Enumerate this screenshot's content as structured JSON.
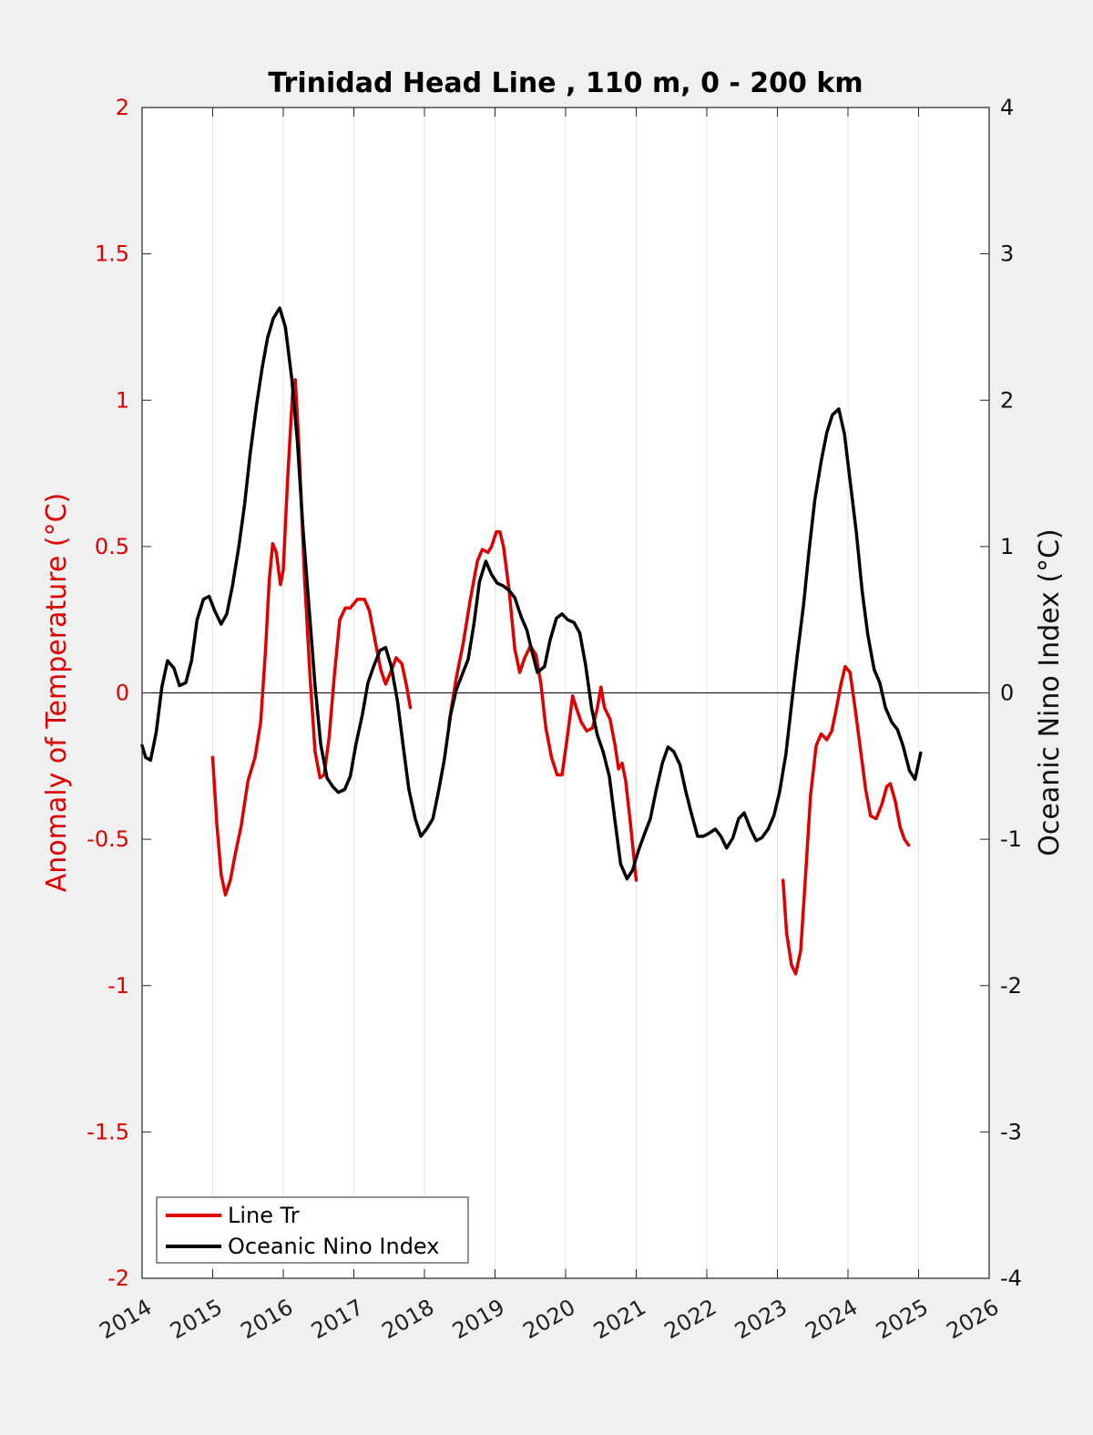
{
  "chart_data": {
    "type": "line",
    "title": "Trinidad Head Line , 110 m, 0 - 200 km",
    "ylabel": "Anomaly of Temperature (°C)",
    "ylabel_right": "Oceanic Nino Index (°C)",
    "xlim": [
      2014,
      2026
    ],
    "ylim": [
      -2,
      2
    ],
    "ylim_right": [
      -4,
      4
    ],
    "x_ticks": [
      "2014",
      "2015",
      "2016",
      "2017",
      "2018",
      "2019",
      "2020",
      "2021",
      "2022",
      "2023",
      "2024",
      "2025",
      "2026"
    ],
    "y_ticks_left": [
      "-2",
      "-1.5",
      "-1",
      "-0.5",
      "0",
      "0.5",
      "1",
      "1.5",
      "2"
    ],
    "y_ticks_right": [
      "-4",
      "-3",
      "-2",
      "-1",
      "0",
      "1",
      "2",
      "3",
      "4"
    ],
    "grid": "vertical",
    "zero_line": true,
    "legend_position": "bottom-left",
    "series": [
      {
        "name": "Line Tr",
        "color": "#e00000",
        "axis": "left",
        "segments": [
          [
            [
              2015.0,
              -0.22
            ],
            [
              2015.06,
              -0.45
            ],
            [
              2015.12,
              -0.62
            ],
            [
              2015.18,
              -0.69
            ],
            [
              2015.25,
              -0.64
            ],
            [
              2015.32,
              -0.55
            ],
            [
              2015.4,
              -0.46
            ],
            [
              2015.5,
              -0.3
            ],
            [
              2015.6,
              -0.22
            ],
            [
              2015.68,
              -0.1
            ],
            [
              2015.75,
              0.15
            ],
            [
              2015.8,
              0.38
            ],
            [
              2015.85,
              0.51
            ],
            [
              2015.9,
              0.48
            ],
            [
              2015.96,
              0.37
            ],
            [
              2016.0,
              0.42
            ],
            [
              2016.06,
              0.72
            ],
            [
              2016.13,
              1.02
            ],
            [
              2016.17,
              1.07
            ],
            [
              2016.22,
              0.85
            ],
            [
              2016.3,
              0.4
            ],
            [
              2016.38,
              0.05
            ],
            [
              2016.45,
              -0.2
            ],
            [
              2016.52,
              -0.29
            ],
            [
              2016.58,
              -0.28
            ],
            [
              2016.65,
              -0.15
            ],
            [
              2016.72,
              0.05
            ],
            [
              2016.8,
              0.25
            ],
            [
              2016.88,
              0.29
            ],
            [
              2016.95,
              0.29
            ],
            [
              2017.05,
              0.32
            ],
            [
              2017.15,
              0.32
            ],
            [
              2017.22,
              0.28
            ],
            [
              2017.3,
              0.18
            ],
            [
              2017.38,
              0.08
            ],
            [
              2017.45,
              0.03
            ],
            [
              2017.52,
              0.07
            ],
            [
              2017.6,
              0.12
            ],
            [
              2017.68,
              0.1
            ],
            [
              2017.75,
              0.02
            ],
            [
              2017.8,
              -0.05
            ]
          ],
          [
            [
              2018.35,
              -0.1
            ],
            [
              2018.45,
              0.05
            ],
            [
              2018.55,
              0.17
            ],
            [
              2018.65,
              0.32
            ],
            [
              2018.75,
              0.45
            ],
            [
              2018.82,
              0.49
            ],
            [
              2018.9,
              0.48
            ],
            [
              2018.95,
              0.5
            ],
            [
              2019.02,
              0.55
            ],
            [
              2019.07,
              0.55
            ],
            [
              2019.12,
              0.5
            ],
            [
              2019.2,
              0.35
            ],
            [
              2019.28,
              0.15
            ],
            [
              2019.35,
              0.07
            ],
            [
              2019.42,
              0.12
            ],
            [
              2019.5,
              0.16
            ],
            [
              2019.58,
              0.13
            ],
            [
              2019.65,
              0.03
            ],
            [
              2019.72,
              -0.12
            ],
            [
              2019.8,
              -0.22
            ],
            [
              2019.88,
              -0.28
            ],
            [
              2019.95,
              -0.28
            ],
            [
              2020.03,
              -0.14
            ],
            [
              2020.1,
              -0.01
            ],
            [
              2020.15,
              -0.05
            ],
            [
              2020.22,
              -0.1
            ],
            [
              2020.3,
              -0.13
            ],
            [
              2020.38,
              -0.12
            ],
            [
              2020.45,
              -0.05
            ],
            [
              2020.5,
              0.02
            ],
            [
              2020.55,
              -0.05
            ],
            [
              2020.63,
              -0.09
            ],
            [
              2020.7,
              -0.18
            ],
            [
              2020.75,
              -0.26
            ],
            [
              2020.8,
              -0.24
            ],
            [
              2020.85,
              -0.3
            ],
            [
              2020.92,
              -0.45
            ],
            [
              2021.0,
              -0.64
            ]
          ],
          [
            [
              2023.08,
              -0.64
            ],
            [
              2023.13,
              -0.82
            ],
            [
              2023.2,
              -0.93
            ],
            [
              2023.26,
              -0.96
            ],
            [
              2023.33,
              -0.88
            ],
            [
              2023.4,
              -0.62
            ],
            [
              2023.47,
              -0.35
            ],
            [
              2023.55,
              -0.18
            ],
            [
              2023.62,
              -0.14
            ],
            [
              2023.7,
              -0.16
            ],
            [
              2023.77,
              -0.13
            ],
            [
              2023.83,
              -0.06
            ],
            [
              2023.9,
              0.03
            ],
            [
              2023.96,
              0.09
            ],
            [
              2024.03,
              0.07
            ],
            [
              2024.1,
              -0.05
            ],
            [
              2024.18,
              -0.2
            ],
            [
              2024.25,
              -0.33
            ],
            [
              2024.32,
              -0.42
            ],
            [
              2024.4,
              -0.43
            ],
            [
              2024.48,
              -0.38
            ],
            [
              2024.55,
              -0.32
            ],
            [
              2024.6,
              -0.31
            ],
            [
              2024.67,
              -0.37
            ],
            [
              2024.74,
              -0.46
            ],
            [
              2024.8,
              -0.5
            ],
            [
              2024.86,
              -0.52
            ]
          ]
        ]
      },
      {
        "name": "Oceanic Nino Index",
        "color": "#000000",
        "axis": "right",
        "segments": [
          [
            [
              2014.0,
              -0.36
            ],
            [
              2014.05,
              -0.44
            ],
            [
              2014.12,
              -0.46
            ],
            [
              2014.2,
              -0.27
            ],
            [
              2014.28,
              0.04
            ],
            [
              2014.36,
              0.22
            ],
            [
              2014.45,
              0.17
            ],
            [
              2014.53,
              0.05
            ],
            [
              2014.62,
              0.07
            ],
            [
              2014.7,
              0.22
            ],
            [
              2014.78,
              0.5
            ],
            [
              2014.87,
              0.64
            ],
            [
              2014.95,
              0.66
            ],
            [
              2015.03,
              0.56
            ],
            [
              2015.12,
              0.47
            ],
            [
              2015.2,
              0.54
            ],
            [
              2015.28,
              0.73
            ],
            [
              2015.37,
              1.0
            ],
            [
              2015.45,
              1.28
            ],
            [
              2015.53,
              1.63
            ],
            [
              2015.62,
              1.96
            ],
            [
              2015.7,
              2.22
            ],
            [
              2015.78,
              2.43
            ],
            [
              2015.86,
              2.56
            ],
            [
              2015.95,
              2.63
            ],
            [
              2016.03,
              2.5
            ],
            [
              2016.12,
              2.15
            ],
            [
              2016.2,
              1.72
            ],
            [
              2016.28,
              1.12
            ],
            [
              2016.37,
              0.55
            ],
            [
              2016.45,
              0.05
            ],
            [
              2016.53,
              -0.35
            ],
            [
              2016.62,
              -0.58
            ],
            [
              2016.7,
              -0.64
            ],
            [
              2016.78,
              -0.68
            ],
            [
              2016.87,
              -0.66
            ],
            [
              2016.95,
              -0.57
            ],
            [
              2017.03,
              -0.35
            ],
            [
              2017.12,
              -0.15
            ],
            [
              2017.2,
              0.07
            ],
            [
              2017.28,
              0.18
            ],
            [
              2017.37,
              0.29
            ],
            [
              2017.45,
              0.31
            ],
            [
              2017.53,
              0.18
            ],
            [
              2017.62,
              -0.06
            ],
            [
              2017.7,
              -0.37
            ],
            [
              2017.78,
              -0.66
            ],
            [
              2017.87,
              -0.86
            ],
            [
              2017.95,
              -0.98
            ],
            [
              2018.03,
              -0.93
            ],
            [
              2018.12,
              -0.86
            ],
            [
              2018.2,
              -0.67
            ],
            [
              2018.28,
              -0.46
            ],
            [
              2018.37,
              -0.15
            ],
            [
              2018.45,
              0.02
            ],
            [
              2018.53,
              0.12
            ],
            [
              2018.62,
              0.23
            ],
            [
              2018.7,
              0.47
            ],
            [
              2018.78,
              0.76
            ],
            [
              2018.87,
              0.9
            ],
            [
              2018.95,
              0.81
            ],
            [
              2019.03,
              0.75
            ],
            [
              2019.12,
              0.73
            ],
            [
              2019.2,
              0.7
            ],
            [
              2019.28,
              0.65
            ],
            [
              2019.37,
              0.52
            ],
            [
              2019.45,
              0.43
            ],
            [
              2019.53,
              0.27
            ],
            [
              2019.6,
              0.14
            ],
            [
              2019.7,
              0.18
            ],
            [
              2019.78,
              0.36
            ],
            [
              2019.87,
              0.51
            ],
            [
              2019.95,
              0.54
            ],
            [
              2020.03,
              0.5
            ],
            [
              2020.12,
              0.48
            ],
            [
              2020.2,
              0.41
            ],
            [
              2020.28,
              0.2
            ],
            [
              2020.37,
              -0.11
            ],
            [
              2020.45,
              -0.29
            ],
            [
              2020.53,
              -0.4
            ],
            [
              2020.62,
              -0.57
            ],
            [
              2020.7,
              -0.88
            ],
            [
              2020.78,
              -1.17
            ],
            [
              2020.87,
              -1.27
            ],
            [
              2020.95,
              -1.21
            ],
            [
              2021.03,
              -1.08
            ],
            [
              2021.12,
              -0.96
            ],
            [
              2021.2,
              -0.86
            ],
            [
              2021.28,
              -0.67
            ],
            [
              2021.37,
              -0.48
            ],
            [
              2021.45,
              -0.37
            ],
            [
              2021.53,
              -0.4
            ],
            [
              2021.62,
              -0.49
            ],
            [
              2021.7,
              -0.67
            ],
            [
              2021.78,
              -0.82
            ],
            [
              2021.87,
              -0.98
            ],
            [
              2021.95,
              -0.98
            ],
            [
              2022.03,
              -0.96
            ],
            [
              2022.12,
              -0.93
            ],
            [
              2022.2,
              -0.98
            ],
            [
              2022.28,
              -1.06
            ],
            [
              2022.37,
              -0.99
            ],
            [
              2022.45,
              -0.86
            ],
            [
              2022.53,
              -0.82
            ],
            [
              2022.62,
              -0.93
            ],
            [
              2022.7,
              -1.01
            ],
            [
              2022.78,
              -0.99
            ],
            [
              2022.87,
              -0.93
            ],
            [
              2022.95,
              -0.84
            ],
            [
              2023.03,
              -0.68
            ],
            [
              2023.12,
              -0.42
            ],
            [
              2023.2,
              -0.08
            ],
            [
              2023.28,
              0.25
            ],
            [
              2023.37,
              0.6
            ],
            [
              2023.45,
              0.98
            ],
            [
              2023.53,
              1.32
            ],
            [
              2023.62,
              1.58
            ],
            [
              2023.7,
              1.78
            ],
            [
              2023.78,
              1.9
            ],
            [
              2023.87,
              1.94
            ],
            [
              2023.95,
              1.77
            ],
            [
              2024.03,
              1.45
            ],
            [
              2024.12,
              1.09
            ],
            [
              2024.2,
              0.7
            ],
            [
              2024.28,
              0.4
            ],
            [
              2024.37,
              0.16
            ],
            [
              2024.45,
              0.07
            ],
            [
              2024.53,
              -0.1
            ],
            [
              2024.62,
              -0.2
            ],
            [
              2024.7,
              -0.25
            ],
            [
              2024.78,
              -0.36
            ],
            [
              2024.87,
              -0.53
            ],
            [
              2024.95,
              -0.59
            ],
            [
              2025.03,
              -0.41
            ]
          ]
        ]
      }
    ]
  }
}
